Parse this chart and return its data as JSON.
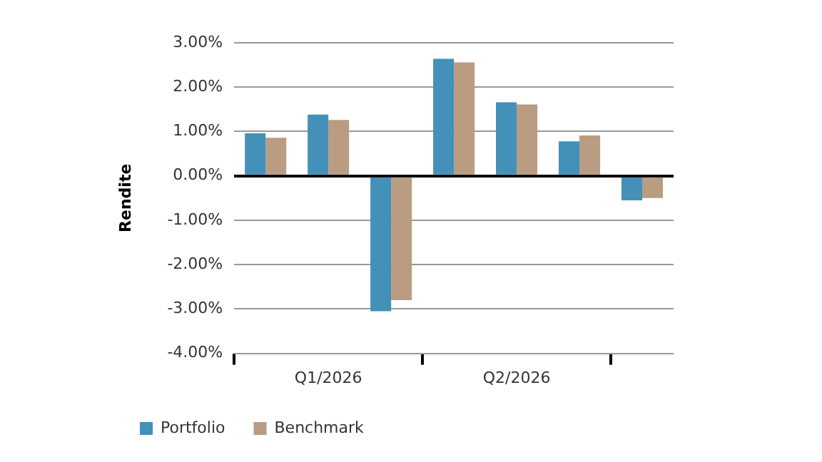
{
  "chart_data": {
    "type": "bar",
    "ylabel": "Rendite",
    "categories": [
      null,
      "Q1/2026",
      null,
      null,
      "Q2/2026",
      null,
      null
    ],
    "series": [
      {
        "name": "Portfolio",
        "color": "#4390b8",
        "values": [
          0.96,
          1.38,
          -3.05,
          2.64,
          1.66,
          0.78,
          -0.55
        ]
      },
      {
        "name": "Benchmark",
        "color": "#b99c81",
        "values": [
          0.86,
          1.26,
          -2.8,
          2.56,
          1.61,
          0.91,
          -0.5
        ]
      }
    ],
    "ylim": [
      -4,
      3
    ],
    "yticks": [
      {
        "value": -4,
        "label": "-4.00%"
      },
      {
        "value": -3,
        "label": "-3.00%"
      },
      {
        "value": -2,
        "label": "-2.00%"
      },
      {
        "value": -1,
        "label": "-1.00%"
      },
      {
        "value": 0,
        "label": "0.00%"
      },
      {
        "value": 1,
        "label": "1.00%"
      },
      {
        "value": 2,
        "label": "2.00%"
      },
      {
        "value": 3,
        "label": "3.00%"
      }
    ],
    "grid": "y",
    "legend": "bottom left"
  }
}
